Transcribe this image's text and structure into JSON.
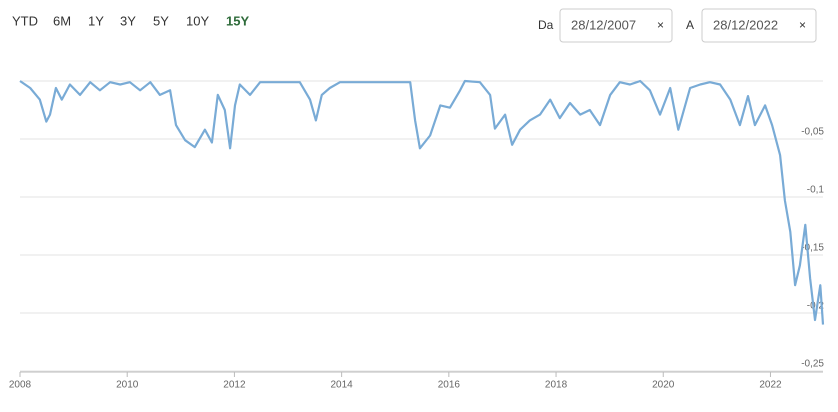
{
  "controls": {
    "ranges": [
      "YTD",
      "6M",
      "1Y",
      "3Y",
      "5Y",
      "10Y",
      "15Y"
    ],
    "active_range": 6,
    "from": {
      "label": "Da",
      "value": "28/12/2007",
      "clear": "×"
    },
    "to": {
      "label": "A",
      "value": "28/12/2022",
      "clear": "×"
    }
  },
  "chart_data": {
    "type": "line",
    "color": "#79abd6",
    "grid": true,
    "x": [
      2008.0,
      2008.19,
      2008.37,
      2008.49,
      2008.56,
      2008.67,
      2008.78,
      2008.93,
      2009.12,
      2009.31,
      2009.49,
      2009.68,
      2009.87,
      2010.05,
      2010.24,
      2010.43,
      2010.61,
      2010.8,
      2010.91,
      2011.08,
      2011.26,
      2011.45,
      2011.58,
      2011.69,
      2011.82,
      2011.92,
      2012.01,
      2012.1,
      2012.29,
      2012.48,
      2012.85,
      2013.22,
      2013.41,
      2013.52,
      2013.63,
      2013.78,
      2013.97,
      2014.53,
      2015.28,
      2015.37,
      2015.46,
      2015.65,
      2015.84,
      2016.02,
      2016.21,
      2016.3,
      2016.58,
      2016.77,
      2016.86,
      2017.05,
      2017.18,
      2017.33,
      2017.51,
      2017.7,
      2017.89,
      2018.07,
      2018.26,
      2018.45,
      2018.63,
      2018.82,
      2019.01,
      2019.19,
      2019.38,
      2019.57,
      2019.75,
      2019.94,
      2020.13,
      2020.28,
      2020.5,
      2020.69,
      2020.87,
      2021.06,
      2021.25,
      2021.43,
      2021.58,
      2021.71,
      2021.9,
      2022.03,
      2022.18,
      2022.27,
      2022.37,
      2022.46,
      2022.55,
      2022.65,
      2022.74,
      2022.83,
      2022.93,
      2022.98
    ],
    "values": [
      0,
      -0.006,
      -0.016,
      -0.035,
      -0.029,
      -0.006,
      -0.016,
      -0.003,
      -0.012,
      -0.001,
      -0.008,
      -0.001,
      -0.003,
      -0.001,
      -0.008,
      -0.001,
      -0.012,
      -0.008,
      -0.038,
      -0.051,
      -0.057,
      -0.042,
      -0.053,
      -0.012,
      -0.025,
      -0.058,
      -0.021,
      -0.003,
      -0.012,
      -0.001,
      -0.001,
      -0.001,
      -0.016,
      -0.034,
      -0.012,
      -0.006,
      -0.001,
      -0.001,
      -0.001,
      -0.034,
      -0.058,
      -0.047,
      -0.021,
      -0.023,
      -0.008,
      0,
      -0.001,
      -0.012,
      -0.041,
      -0.029,
      -0.055,
      -0.042,
      -0.034,
      -0.029,
      -0.016,
      -0.032,
      -0.019,
      -0.029,
      -0.025,
      -0.038,
      -0.012,
      -0.001,
      -0.003,
      0,
      -0.008,
      -0.029,
      -0.006,
      -0.042,
      -0.006,
      -0.003,
      -0.001,
      -0.003,
      -0.016,
      -0.038,
      -0.013,
      -0.038,
      -0.021,
      -0.038,
      -0.064,
      -0.103,
      -0.13,
      -0.176,
      -0.159,
      -0.124,
      -0.17,
      -0.206,
      -0.176,
      -0.21
    ],
    "xlim": [
      2008,
      2022.98
    ],
    "xticks": [
      2008,
      2010,
      2012,
      2014,
      2016,
      2018,
      2020,
      2022
    ],
    "ylim": [
      -0.25,
      0
    ],
    "yticks": [
      {
        "value": -0.05,
        "label": "-0,05"
      },
      {
        "value": -0.1,
        "label": "-0,1"
      },
      {
        "value": -0.15,
        "label": "-0,15"
      },
      {
        "value": -0.2,
        "label": "-0,2"
      },
      {
        "value": -0.25,
        "label": "-0,25"
      }
    ]
  }
}
